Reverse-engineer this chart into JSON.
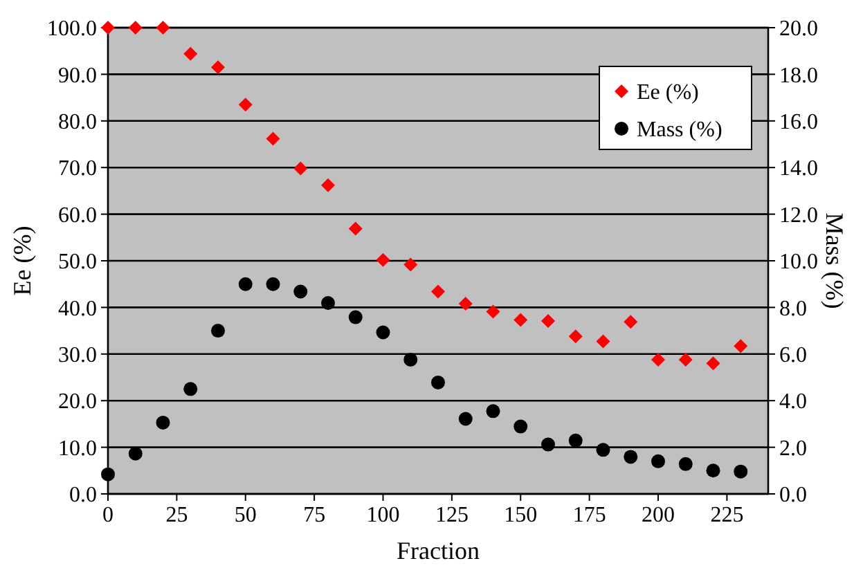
{
  "chart_data": {
    "type": "scatter",
    "xlabel": "Fraction",
    "ylabel": "Ee (%)",
    "y2label": "Mass (%)",
    "x": [
      0,
      10,
      20,
      30,
      40,
      50,
      60,
      70,
      80,
      90,
      100,
      110,
      120,
      130,
      140,
      150,
      160,
      170,
      180,
      190,
      200,
      210,
      220,
      230
    ],
    "series": [
      {
        "name": "Ee (%)",
        "color": "#ff0000",
        "marker": "diamond",
        "values": [
          100,
          100,
          100,
          94.4,
          91.5,
          83.5,
          76.2,
          69.8,
          66.2,
          56.9,
          50.2,
          49.2,
          43.4,
          40.8,
          39.1,
          37.3,
          37.1,
          33.8,
          32.7,
          36.9,
          28.8,
          28.8,
          28.0,
          31.7
        ]
      },
      {
        "name": "Mass (%)",
        "color": "#000000",
        "marker": "circle",
        "axis": "y2",
        "values": [
          0.84,
          1.73,
          3.06,
          4.5,
          7.0,
          9.0,
          9.0,
          8.68,
          8.19,
          7.58,
          6.93,
          5.76,
          4.78,
          3.22,
          3.55,
          2.89,
          2.12,
          2.29,
          1.89,
          1.59,
          1.4,
          1.28,
          1.0,
          0.96
        ]
      }
    ],
    "xlim": [
      0,
      240
    ],
    "xticks": [
      0,
      25,
      50,
      75,
      100,
      125,
      150,
      175,
      200,
      225
    ],
    "ylim": [
      0,
      100
    ],
    "yticks": [
      {
        "value": 0,
        "label": "0.0"
      },
      {
        "value": 10,
        "label": "10.0"
      },
      {
        "value": 20,
        "label": "20.0"
      },
      {
        "value": 30,
        "label": "30.0"
      },
      {
        "value": 40,
        "label": "40.0"
      },
      {
        "value": 50,
        "label": "50.0"
      },
      {
        "value": 60,
        "label": "60.0"
      },
      {
        "value": 70,
        "label": "70.0"
      },
      {
        "value": 80,
        "label": "80.0"
      },
      {
        "value": 90,
        "label": "90.0"
      },
      {
        "value": 100,
        "label": "100.0"
      }
    ],
    "y2lim": [
      0,
      20
    ],
    "y2ticks": [
      {
        "value": 0,
        "label": "0.0"
      },
      {
        "value": 2,
        "label": "2.0"
      },
      {
        "value": 4,
        "label": "4.0"
      },
      {
        "value": 6,
        "label": "6.0"
      },
      {
        "value": 8,
        "label": "8.0"
      },
      {
        "value": 10,
        "label": "10.0"
      },
      {
        "value": 12,
        "label": "12.0"
      },
      {
        "value": 14,
        "label": "14.0"
      },
      {
        "value": 16,
        "label": "16.0"
      },
      {
        "value": 18,
        "label": "18.0"
      },
      {
        "value": 20,
        "label": "20.0"
      }
    ],
    "grid": "y",
    "legend": "top right"
  }
}
